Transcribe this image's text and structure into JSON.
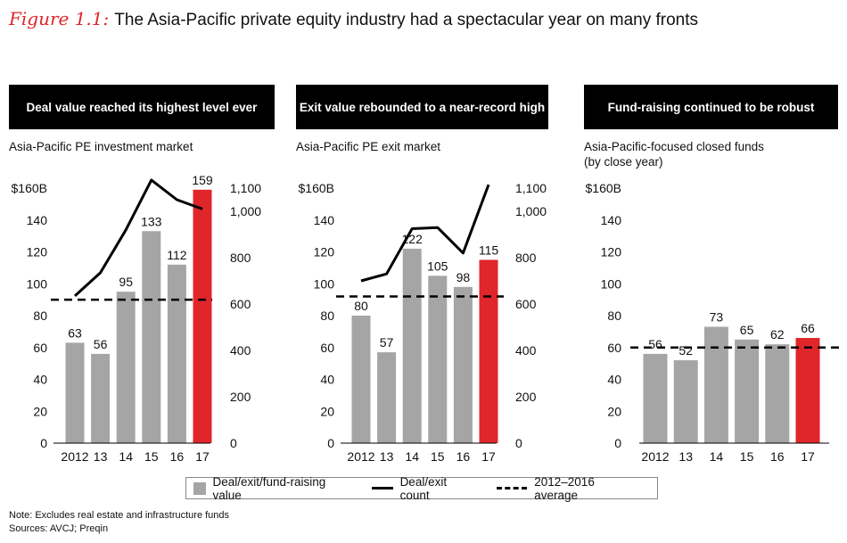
{
  "figure": {
    "label": "Figure 1.1:",
    "title": "The Asia-Pacific private equity industry had a spectacular year on many fronts"
  },
  "colors": {
    "bar": "#a5a5a5",
    "highlight": "#e0262b",
    "line": "#000000"
  },
  "chart_data": [
    {
      "type": "bar",
      "header": "Deal value reached its highest level ever",
      "subtitle": [
        "Asia-Pacific PE investment market"
      ],
      "categories": [
        "2012",
        "13",
        "14",
        "15",
        "16",
        "17"
      ],
      "values": [
        63,
        56,
        95,
        133,
        112,
        159
      ],
      "value_labels": [
        "63",
        "56",
        "95",
        "133",
        "112",
        "159"
      ],
      "highlight_index": 5,
      "ylim": [
        0,
        160
      ],
      "y_ticks": [
        0,
        20,
        40,
        60,
        80,
        100,
        120,
        140,
        160
      ],
      "y_tick_labels": [
        "0",
        "20",
        "40",
        "60",
        "80",
        "100",
        "120",
        "140",
        "$160B"
      ],
      "secondary": {
        "ylim": [
          0,
          1100
        ],
        "ticks": [
          0,
          200,
          400,
          600,
          800,
          1000,
          1100
        ],
        "tick_labels": [
          "0",
          "200",
          "400",
          "600",
          "800",
          "1,000",
          "1,100"
        ],
        "line_values": [
          635,
          735,
          920,
          1135,
          1050,
          1010
        ]
      },
      "average": 90
    },
    {
      "type": "bar",
      "header": "Exit value rebounded to a near-record high",
      "subtitle": [
        "Asia-Pacific PE exit market"
      ],
      "categories": [
        "2012",
        "13",
        "14",
        "15",
        "16",
        "17"
      ],
      "values": [
        80,
        57,
        122,
        105,
        98,
        115
      ],
      "value_labels": [
        "80",
        "57",
        "122",
        "105",
        "98",
        "115"
      ],
      "highlight_index": 5,
      "ylim": [
        0,
        160
      ],
      "y_ticks": [
        0,
        20,
        40,
        60,
        80,
        100,
        120,
        140,
        160
      ],
      "y_tick_labels": [
        "0",
        "20",
        "40",
        "60",
        "80",
        "100",
        "120",
        "140",
        "$160B"
      ],
      "secondary": {
        "ylim": [
          0,
          1100
        ],
        "ticks": [
          0,
          200,
          400,
          600,
          800,
          1000,
          1100
        ],
        "tick_labels": [
          "0",
          "200",
          "400",
          "600",
          "800",
          "1,000",
          "1,100"
        ],
        "line_values": [
          700,
          730,
          925,
          930,
          820,
          1115
        ]
      },
      "average": 92
    },
    {
      "type": "bar",
      "header": "Fund-raising continued to be robust",
      "subtitle": [
        "Asia-Pacific-focused closed funds",
        "(by close year)"
      ],
      "categories": [
        "2012",
        "13",
        "14",
        "15",
        "16",
        "17"
      ],
      "values": [
        56,
        52,
        73,
        65,
        62,
        66
      ],
      "value_labels": [
        "56",
        "52",
        "73",
        "65",
        "62",
        "66"
      ],
      "highlight_index": 5,
      "ylim": [
        0,
        160
      ],
      "y_ticks": [
        0,
        20,
        40,
        60,
        80,
        100,
        120,
        140,
        160
      ],
      "y_tick_labels": [
        "0",
        "20",
        "40",
        "60",
        "80",
        "100",
        "120",
        "140",
        "$160B"
      ],
      "average": 60
    }
  ],
  "legend": {
    "value": "Deal/exit/fund-raising value",
    "count": "Deal/exit count",
    "average": "2012–2016 average"
  },
  "footnotes": {
    "note": "Note: Excludes real estate and infrastructure funds",
    "sources": "Sources: AVCJ; Preqin"
  }
}
